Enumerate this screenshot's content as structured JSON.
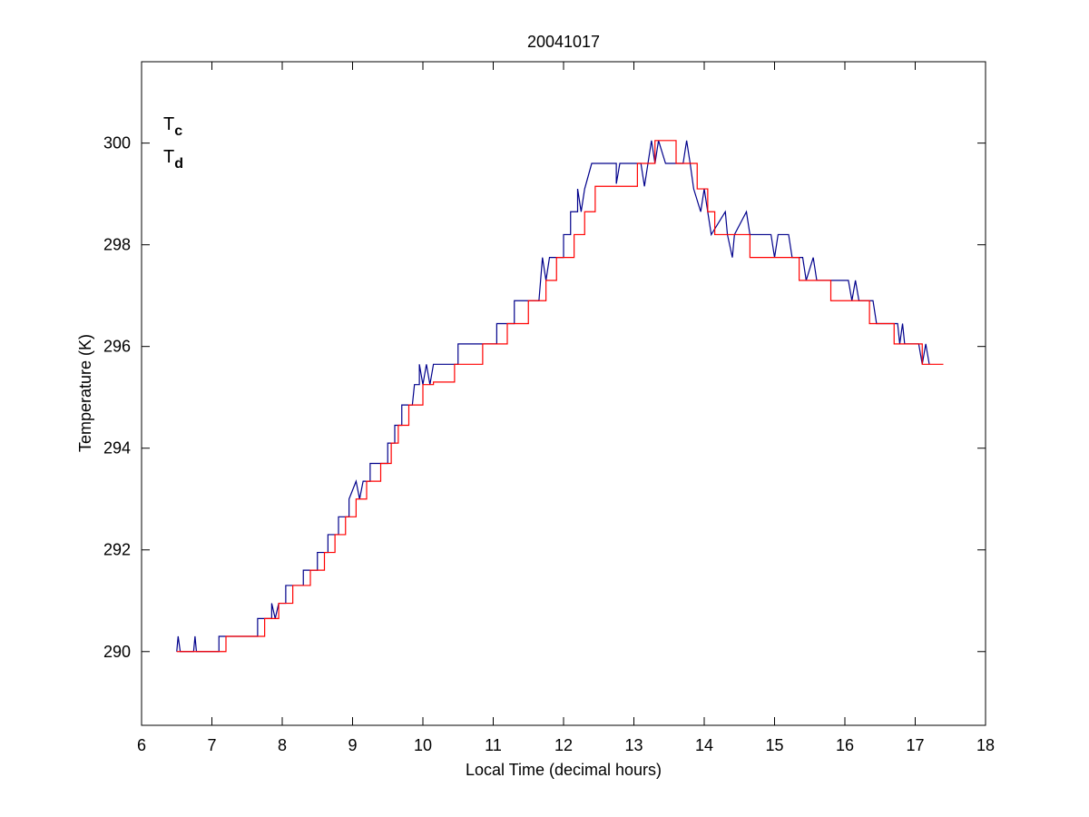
{
  "chart_data": {
    "type": "line",
    "title": "20041017",
    "xlabel": "Local Time (decimal hours)",
    "ylabel": "Temperature (K)",
    "xlim": [
      6,
      18
    ],
    "ylim": [
      288.55,
      301.6
    ],
    "xticks": [
      6,
      7,
      8,
      9,
      10,
      11,
      12,
      13,
      14,
      15,
      16,
      17,
      18
    ],
    "yticks": [
      290,
      292,
      294,
      296,
      298,
      300
    ],
    "grid": false,
    "legend_loc": "upper left",
    "series": [
      {
        "name": "Tc",
        "color": "#00008b",
        "x": [
          6.5,
          6.52,
          6.55,
          6.74,
          6.76,
          6.78,
          7.1,
          7.1,
          7.65,
          7.65,
          7.85,
          7.85,
          7.9,
          7.95,
          8.05,
          8.05,
          8.3,
          8.3,
          8.5,
          8.5,
          8.65,
          8.65,
          8.8,
          8.8,
          8.95,
          8.95,
          9.05,
          9.1,
          9.15,
          9.25,
          9.25,
          9.5,
          9.5,
          9.6,
          9.6,
          9.7,
          9.7,
          9.85,
          9.88,
          9.95,
          9.95,
          10.0,
          10.05,
          10.1,
          10.15,
          10.5,
          10.5,
          11.05,
          11.05,
          11.3,
          11.3,
          11.65,
          11.7,
          11.75,
          11.8,
          12.0,
          12.0,
          12.1,
          12.1,
          12.2,
          12.2,
          12.25,
          12.3,
          12.4,
          12.75,
          12.75,
          12.8,
          13.1,
          13.15,
          13.2,
          13.25,
          13.3,
          13.35,
          13.45,
          13.7,
          13.75,
          13.8,
          13.85,
          13.95,
          14.0,
          14.1,
          14.3,
          14.33,
          14.4,
          14.43,
          14.6,
          14.65,
          14.95,
          15.0,
          15.05,
          15.2,
          15.25,
          15.4,
          15.45,
          15.55,
          15.6,
          16.05,
          16.1,
          16.15,
          16.2,
          16.4,
          16.45,
          16.75,
          16.78,
          16.82,
          16.85,
          17.05,
          17.1,
          17.15,
          17.2
        ],
        "values": [
          290,
          290.3,
          290,
          290,
          290.3,
          290,
          290,
          290.3,
          290.3,
          290.65,
          290.65,
          290.95,
          290.65,
          290.95,
          290.95,
          291.3,
          291.3,
          291.6,
          291.6,
          291.95,
          291.95,
          292.3,
          292.3,
          292.65,
          292.65,
          293,
          293.35,
          293,
          293.35,
          293.35,
          293.7,
          293.7,
          294.1,
          294.1,
          294.45,
          294.45,
          294.85,
          294.85,
          295.25,
          295.25,
          295.65,
          295.25,
          295.65,
          295.25,
          295.65,
          295.65,
          296.05,
          296.05,
          296.45,
          296.45,
          296.9,
          296.9,
          297.75,
          297.3,
          297.75,
          297.75,
          298.2,
          298.2,
          298.65,
          298.65,
          299.1,
          298.65,
          299.1,
          299.6,
          299.6,
          299.2,
          299.6,
          299.6,
          299.15,
          299.6,
          300.05,
          299.6,
          300.05,
          299.6,
          299.6,
          300.05,
          299.6,
          299.1,
          298.65,
          299.1,
          298.2,
          298.65,
          298.2,
          297.75,
          298.2,
          298.65,
          298.2,
          298.2,
          297.75,
          298.2,
          298.2,
          297.75,
          297.75,
          297.3,
          297.75,
          297.3,
          297.3,
          296.9,
          297.3,
          296.9,
          296.9,
          296.45,
          296.45,
          296.05,
          296.45,
          296.05,
          296.05,
          295.65,
          296.05,
          295.65
        ]
      },
      {
        "name": "Td",
        "color": "#ff0000",
        "x": [
          6.5,
          7.2,
          7.2,
          7.75,
          7.75,
          7.95,
          7.95,
          8.15,
          8.15,
          8.4,
          8.4,
          8.6,
          8.6,
          8.75,
          8.75,
          8.9,
          8.9,
          9.05,
          9.05,
          9.2,
          9.2,
          9.4,
          9.4,
          9.55,
          9.55,
          9.65,
          9.65,
          9.8,
          9.8,
          10.0,
          10.0,
          10.15,
          10.15,
          10.45,
          10.45,
          10.85,
          10.85,
          11.2,
          11.2,
          11.5,
          11.5,
          11.75,
          11.75,
          11.9,
          11.9,
          12.15,
          12.15,
          12.3,
          12.3,
          12.45,
          12.45,
          13.05,
          13.05,
          13.3,
          13.3,
          13.6,
          13.6,
          13.9,
          13.9,
          14.05,
          14.05,
          14.15,
          14.15,
          14.65,
          14.65,
          15.35,
          15.35,
          15.8,
          15.8,
          16.35,
          16.35,
          16.7,
          16.7,
          17.1,
          17.1,
          17.4
        ],
        "values": [
          290,
          290,
          290.3,
          290.3,
          290.65,
          290.65,
          290.95,
          290.95,
          291.3,
          291.3,
          291.6,
          291.6,
          291.95,
          291.95,
          292.3,
          292.3,
          292.65,
          292.65,
          293,
          293,
          293.35,
          293.35,
          293.7,
          293.7,
          294.1,
          294.1,
          294.45,
          294.45,
          294.85,
          294.85,
          295.25,
          295.25,
          295.3,
          295.3,
          295.65,
          295.65,
          296.05,
          296.05,
          296.45,
          296.45,
          296.9,
          296.9,
          297.3,
          297.3,
          297.75,
          297.75,
          298.2,
          298.2,
          298.65,
          298.65,
          299.15,
          299.15,
          299.6,
          299.6,
          300.05,
          300.05,
          299.6,
          299.6,
          299.1,
          299.1,
          298.65,
          298.65,
          298.2,
          298.2,
          297.75,
          297.75,
          297.3,
          297.3,
          296.9,
          296.9,
          296.45,
          296.45,
          296.05,
          296.05,
          295.65,
          295.65
        ]
      }
    ]
  }
}
